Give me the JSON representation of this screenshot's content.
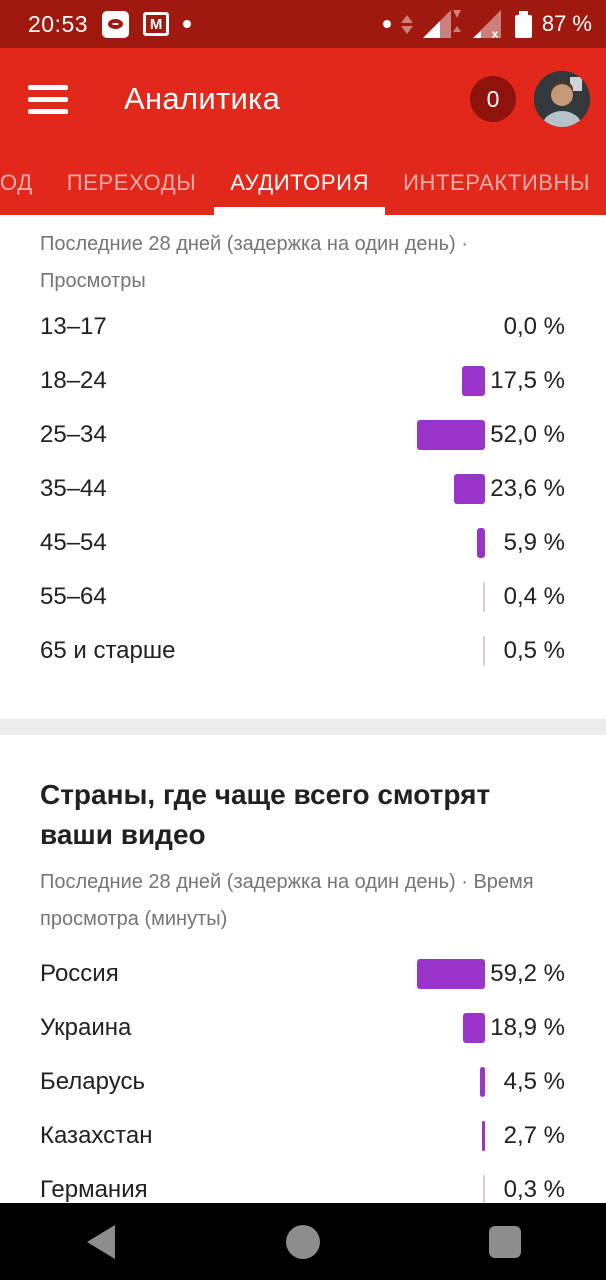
{
  "status_bar": {
    "time": "20:53",
    "battery_label": "87 %",
    "left_icons": [
      "ok-app-icon",
      "gmail-icon",
      "overflow-dot-icon"
    ],
    "right_icons": [
      "overflow-dot-icon",
      "data-updown-icon",
      "signal-sim1-icon",
      "signal-sim2-nodata-icon",
      "battery-icon"
    ]
  },
  "app_bar": {
    "title": "Аналитика",
    "notification_count": "0",
    "icons": [
      "hamburger-menu-icon",
      "notification-badge",
      "user-avatar"
    ]
  },
  "tab_bar": {
    "tabs": [
      {
        "label": "ОД",
        "active": false
      },
      {
        "label": "ПЕРЕХОДЫ",
        "active": false
      },
      {
        "label": "АУДИТОРИЯ",
        "active": true
      },
      {
        "label": "ИНТЕРАКТИВНЫ",
        "active": false
      }
    ]
  },
  "age_section": {
    "subtitle": "Последние 28 дней (задержка на один день) · Просмотры",
    "rows": [
      {
        "label": "13–17",
        "value": 0.0,
        "value_label": "0,0 %"
      },
      {
        "label": "18–24",
        "value": 17.5,
        "value_label": "17,5 %"
      },
      {
        "label": "25–34",
        "value": 52.0,
        "value_label": "52,0 %"
      },
      {
        "label": "35–44",
        "value": 23.6,
        "value_label": "23,6 %"
      },
      {
        "label": "45–54",
        "value": 5.9,
        "value_label": "5,9 %"
      },
      {
        "label": "55–64",
        "value": 0.4,
        "value_label": "0,4 %"
      },
      {
        "label": "65 и старше",
        "value": 0.5,
        "value_label": "0,5 %"
      }
    ]
  },
  "countries_section": {
    "title": "Страны, где чаще всего смотрят ваши видео",
    "subtitle": "Последние 28 дней (задержка на один день) · Время просмотра (минуты)",
    "rows": [
      {
        "label": "Россия",
        "value": 59.2,
        "value_label": "59,2 %"
      },
      {
        "label": "Украина",
        "value": 18.9,
        "value_label": "18,9 %"
      },
      {
        "label": "Беларусь",
        "value": 4.5,
        "value_label": "4,5 %"
      },
      {
        "label": "Казахстан",
        "value": 2.7,
        "value_label": "2,7 %"
      },
      {
        "label": "Германия",
        "value": 0.3,
        "value_label": "0,3 %"
      }
    ]
  },
  "nav_bar": {
    "icons": [
      "back-icon",
      "home-icon",
      "recents-icon"
    ]
  },
  "chart_data": [
    {
      "type": "bar",
      "orientation": "horizontal",
      "title": "Возраст аудитории",
      "subtitle": "Последние 28 дней (задержка на один день) · Просмотры",
      "categories": [
        "13–17",
        "18–24",
        "25–34",
        "35–44",
        "45–54",
        "55–64",
        "65 и старше"
      ],
      "values": [
        0.0,
        17.5,
        52.0,
        23.6,
        5.9,
        0.4,
        0.5
      ],
      "unit": "%"
    },
    {
      "type": "bar",
      "orientation": "horizontal",
      "title": "Страны, где чаще всего смотрят ваши видео",
      "subtitle": "Последние 28 дней (задержка на один день) · Время просмотра (минуты)",
      "categories": [
        "Россия",
        "Украина",
        "Беларусь",
        "Казахстан",
        "Германия"
      ],
      "values": [
        59.2,
        18.9,
        4.5,
        2.7,
        0.3
      ],
      "unit": "%"
    }
  ],
  "colors": {
    "bar_purple": "#9a34c9",
    "bar_hairline": "#e0c6ef",
    "app_bar_red": "#e2271b",
    "status_bar_red": "#a0190f",
    "badge_dark_red": "#8f130c",
    "text_dark": "#212121",
    "text_gray": "#757575",
    "nav_black": "#000000"
  }
}
